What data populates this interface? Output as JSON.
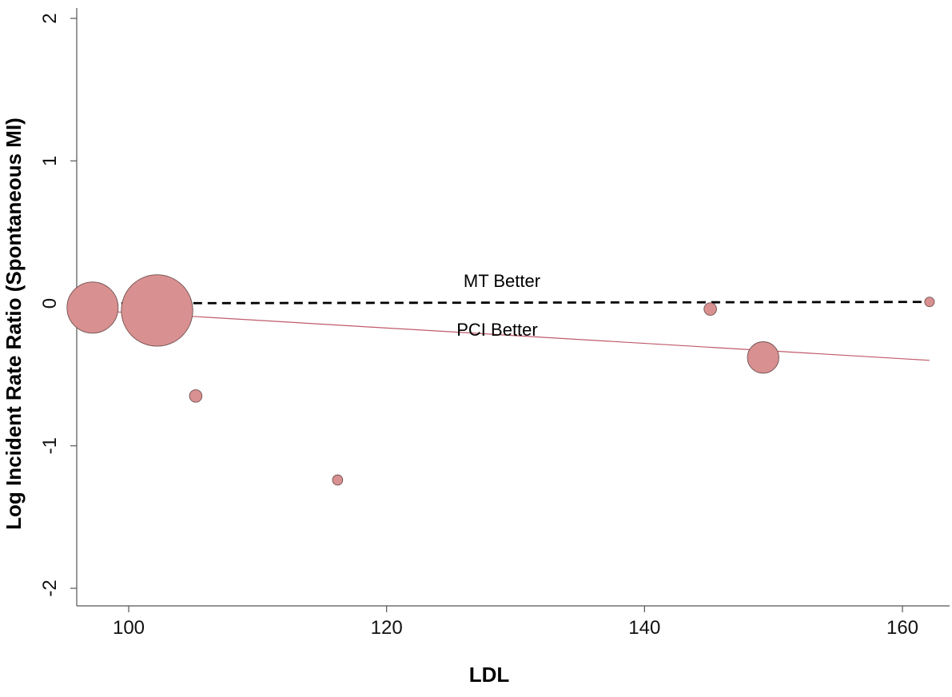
{
  "chart_data": {
    "type": "scatter",
    "title": "",
    "xlabel": "LDL",
    "ylabel": "Log Incident Rate Ratio (Spontaneous MI)",
    "xlim": [
      95,
      163
    ],
    "ylim": [
      -2.1,
      2.1
    ],
    "x_ticks": [
      100,
      120,
      140,
      160
    ],
    "y_ticks": [
      -2,
      -1,
      0,
      1,
      2
    ],
    "grid": false,
    "marker_color": "#d99090",
    "marker_edge_color": "#6f5151",
    "fit_line_color": "#c05a6a",
    "reference_line_color": "#000000",
    "points": [
      {
        "x": 97.2,
        "y": -0.03,
        "weight": 1.0
      },
      {
        "x": 102.2,
        "y": -0.05,
        "weight": 1.95
      },
      {
        "x": 105.2,
        "y": -0.65,
        "weight": 0.06
      },
      {
        "x": 116.2,
        "y": -1.24,
        "weight": 0.04
      },
      {
        "x": 145.1,
        "y": -0.04,
        "weight": 0.06
      },
      {
        "x": 149.2,
        "y": -0.38,
        "weight": 0.38
      },
      {
        "x": 162.1,
        "y": 0.01,
        "weight": 0.03
      }
    ],
    "reference_line": {
      "x": [
        97.2,
        162.1
      ],
      "y": [
        0.0,
        0.01
      ]
    },
    "fit_line": {
      "x": [
        97.2,
        162.1
      ],
      "y": [
        -0.05,
        -0.4
      ]
    },
    "annotations": {
      "above": "MT Better",
      "below": "PCI Better"
    }
  }
}
